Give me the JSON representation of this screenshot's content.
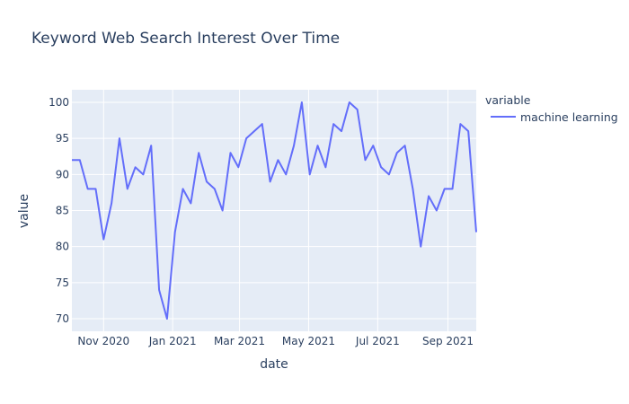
{
  "chart_data": {
    "type": "line",
    "title": "Keyword Web Search Interest Over Time",
    "xlabel": "date",
    "ylabel": "value",
    "ylim": [
      68.26,
      101.74
    ],
    "yticks": [
      70,
      75,
      80,
      85,
      90,
      95,
      100
    ],
    "xticks": [
      {
        "label": "Nov 2020",
        "date": "2020-11-01"
      },
      {
        "label": "Jan 2021",
        "date": "2021-01-01"
      },
      {
        "label": "Mar 2021",
        "date": "2021-03-01"
      },
      {
        "label": "May 2021",
        "date": "2021-05-01"
      },
      {
        "label": "Jul 2021",
        "date": "2021-07-01"
      },
      {
        "label": "Sep 2021",
        "date": "2021-09-01"
      }
    ],
    "x_start": "2020-10-04",
    "x_end": "2021-09-26",
    "x_step_days": 7,
    "grid": true,
    "legend": {
      "title": "variable",
      "position": "right"
    },
    "series": [
      {
        "name": "machine learning",
        "color": "#636efa",
        "values": [
          92,
          92,
          88,
          88,
          81,
          86,
          95,
          88,
          91,
          90,
          94,
          74,
          70,
          82,
          88,
          86,
          93,
          89,
          88,
          85,
          93,
          91,
          95,
          96,
          97,
          89,
          92,
          90,
          94,
          100,
          90,
          94,
          91,
          97,
          96,
          100,
          99,
          92,
          94,
          91,
          90,
          93,
          94,
          88,
          80,
          87,
          85,
          88,
          88,
          97,
          96,
          82
        ]
      }
    ]
  },
  "colors": {
    "plot_bg": "#e5ecf6",
    "grid": "#ffffff",
    "text": "#2a3f5f",
    "line": "#636efa"
  }
}
